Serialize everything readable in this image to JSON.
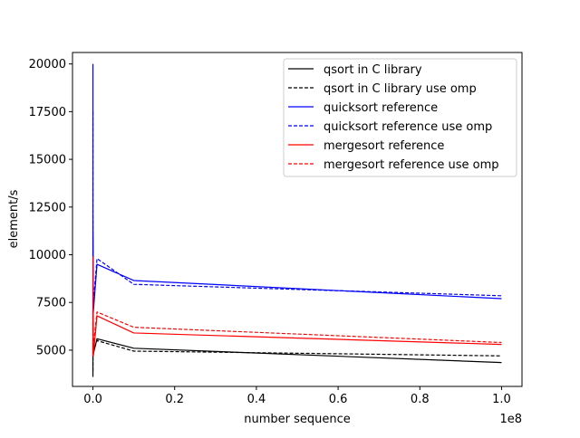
{
  "chart_data": {
    "type": "line",
    "title": "",
    "xlabel": "number sequence",
    "ylabel": "element/s",
    "x_offset_label": "1e8",
    "xlim": [
      -0.05,
      1.05
    ],
    "ylim": [
      3100,
      20600
    ],
    "x_ticks": [
      0.0,
      0.2,
      0.4,
      0.6,
      0.8,
      1.0
    ],
    "x_tick_labels": [
      "0.0",
      "0.2",
      "0.4",
      "0.6",
      "0.8",
      "1.0"
    ],
    "y_ticks": [
      5000,
      7500,
      10000,
      12500,
      15000,
      17500,
      20000
    ],
    "y_tick_labels": [
      "5000",
      "7500",
      "10000",
      "12500",
      "15000",
      "17500",
      "20000"
    ],
    "grid": false,
    "legend_position": "upper right",
    "x": [
      0.0,
      1e-05,
      0.0001,
      0.001,
      0.01,
      0.1,
      1.0
    ],
    "series": [
      {
        "name": "qsort in C library",
        "color": "#000000",
        "dash": "solid",
        "values": [
          3600,
          5200,
          5400,
          4800,
          5600,
          5100,
          4350
        ]
      },
      {
        "name": "qsort in C library use omp",
        "color": "#000000",
        "dash": "dashed",
        "values": [
          3900,
          5600,
          5300,
          4950,
          5500,
          4950,
          4700
        ]
      },
      {
        "name": "quicksort reference",
        "color": "#0000ff",
        "dash": "solid",
        "values": [
          20000,
          6000,
          12000,
          7000,
          9500,
          8650,
          7700
        ]
      },
      {
        "name": "quicksort reference use omp",
        "color": "#0000ff",
        "dash": "dashed",
        "values": [
          17500,
          5800,
          11000,
          7500,
          9800,
          8450,
          7850
        ]
      },
      {
        "name": "mergesort reference",
        "color": "#ff0000",
        "dash": "solid",
        "values": [
          4700,
          5900,
          9000,
          4700,
          6800,
          5900,
          5300
        ]
      },
      {
        "name": "mergesort reference use omp",
        "color": "#ff0000",
        "dash": "dashed",
        "values": [
          4900,
          6100,
          9900,
          5200,
          7000,
          6200,
          5400
        ]
      }
    ]
  }
}
